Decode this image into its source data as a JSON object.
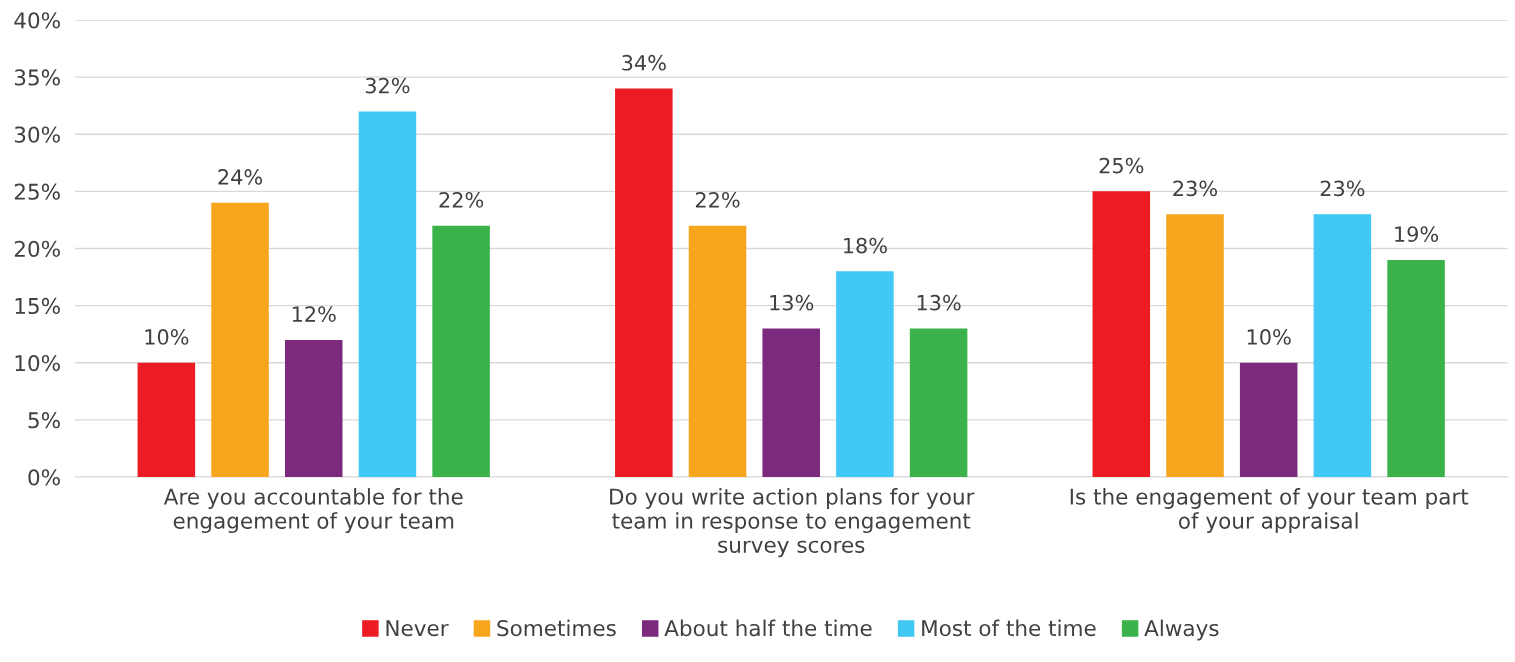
{
  "chart_data": {
    "type": "bar",
    "categories": [
      "Are you accountable for the\nengagement of your team",
      "Do you write action plans for your\nteam in response to engagement\nsurvey scores",
      "Is the engagement of your team part\nof your appraisal"
    ],
    "series": [
      {
        "name": "Never",
        "color": "#ed1c24",
        "values": [
          10,
          34,
          25
        ],
        "value_labels": [
          "10%",
          "34%",
          "25%"
        ]
      },
      {
        "name": "Sometimes",
        "color": "#f7a51c",
        "values": [
          24,
          22,
          23
        ],
        "value_labels": [
          "24%",
          "22%",
          "23%"
        ]
      },
      {
        "name": "About half the time",
        "color": "#7b2a7e",
        "values": [
          12,
          13,
          10
        ],
        "value_labels": [
          "12%",
          "13%",
          "10%"
        ]
      },
      {
        "name": "Most of the time",
        "color": "#41c8f4",
        "values": [
          32,
          18,
          23
        ],
        "value_labels": [
          "32%",
          "18%",
          "23%"
        ]
      },
      {
        "name": "Always",
        "color": "#3bb34a",
        "values": [
          22,
          13,
          19
        ],
        "value_labels": [
          "22%",
          "13%",
          "19%"
        ]
      }
    ],
    "ylim": [
      0,
      40
    ],
    "yticks": [
      {
        "value": 0,
        "label": "0%"
      },
      {
        "value": 5,
        "label": "5%"
      },
      {
        "value": 10,
        "label": "10%"
      },
      {
        "value": 15,
        "label": "15%"
      },
      {
        "value": 20,
        "label": "20%"
      },
      {
        "value": 25,
        "label": "25%"
      },
      {
        "value": 30,
        "label": "30%"
      },
      {
        "value": 35,
        "label": "35%"
      },
      {
        "value": 40,
        "label": "40%"
      }
    ],
    "grid": "y",
    "legend": "bottom"
  }
}
